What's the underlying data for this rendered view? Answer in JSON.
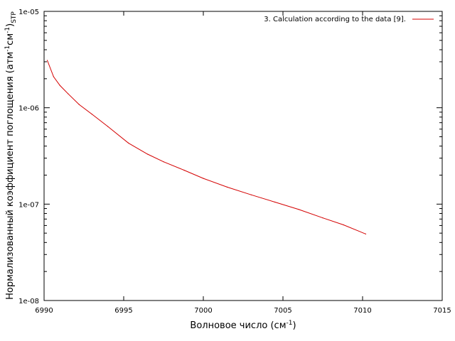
{
  "chart_data": {
    "type": "line",
    "xlabel": "Волновое число (см",
    "xlabel_sup": "-1",
    "xlabel_end": ")",
    "ylabel": "Нормализованный коэффициент поглощения (атм",
    "ylabel_sup1": "-1",
    "ylabel_mid": "см",
    "ylabel_sup2": "-1",
    "ylabel_end": ")",
    "ylabel_sub": "STP",
    "xlim": [
      6990,
      7015
    ],
    "ylim": [
      1e-08,
      1e-05
    ],
    "yscale": "log",
    "x_ticks": [
      "6990",
      "6995",
      "7000",
      "7005",
      "7010",
      "7015"
    ],
    "x_tick_values": [
      6990,
      6995,
      7000,
      7005,
      7010,
      7015
    ],
    "y_ticks": [
      "1e-08",
      "1e-07",
      "1e-06",
      "1e-05"
    ],
    "y_tick_values": [
      1e-08,
      1e-07,
      1e-06,
      1e-05
    ],
    "grid": false,
    "legend_position": "top-right",
    "line_color": "#d40000",
    "series": [
      {
        "name": "3. Calculation according to the data [9].",
        "color": "#d40000",
        "x": [
          6990.2,
          6990.6,
          6991.0,
          6991.5,
          6992.2,
          6993.0,
          6994.0,
          6995.3,
          6996.5,
          6997.5,
          6998.8,
          7000.0,
          7001.5,
          7003.0,
          7004.5,
          7006.0,
          7007.5,
          7008.8,
          7010.2
        ],
        "y": [
          3.1e-06,
          2.1e-06,
          1.7e-06,
          1.4e-06,
          1.08e-06,
          8.6e-07,
          6.4e-07,
          4.3e-07,
          3.3e-07,
          2.75e-07,
          2.25e-07,
          1.85e-07,
          1.5e-07,
          1.25e-07,
          1.05e-07,
          8.8e-08,
          7.2e-08,
          6.1e-08,
          4.9e-08
        ]
      }
    ]
  }
}
